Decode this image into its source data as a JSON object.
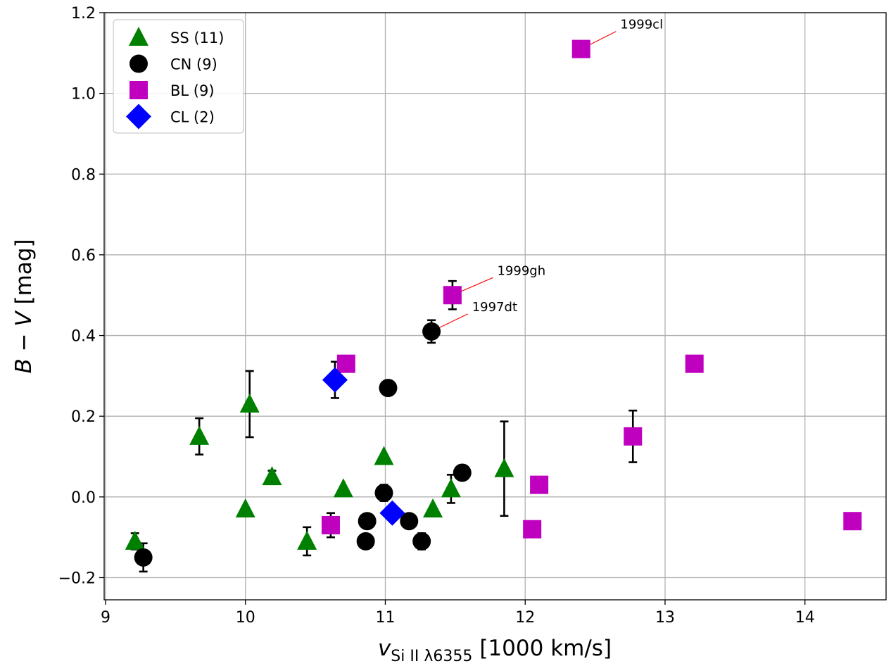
{
  "chart_data": {
    "type": "scatter",
    "xlabel": {
      "main": "v",
      "sub": "Si II λ6355",
      "unit": "[1000 km/s]"
    },
    "ylabel": {
      "b": "B",
      "minus": " − ",
      "v": "V",
      "unit": " [mag]"
    },
    "xlim": [
      8.99,
      14.58
    ],
    "ylim": [
      -0.255,
      1.2
    ],
    "xticks": [
      9,
      10,
      11,
      12,
      13,
      14
    ],
    "xtick_labels": [
      "9",
      "10",
      "11",
      "12",
      "13",
      "14"
    ],
    "yticks": [
      -0.2,
      0.0,
      0.2,
      0.4,
      0.6,
      0.8,
      1.0,
      1.2
    ],
    "ytick_labels": [
      "−0.2",
      "0.0",
      "0.2",
      "0.4",
      "0.6",
      "0.8",
      "1.0",
      "1.2"
    ],
    "grid": true,
    "legend_position": "top-left",
    "series": [
      {
        "name": "SS (11)",
        "marker": "triangle",
        "color": "#008000",
        "points": [
          {
            "x": 9.21,
            "y": -0.11,
            "err": 0.02
          },
          {
            "x": 9.67,
            "y": 0.15,
            "err": 0.045
          },
          {
            "x": 10.0,
            "y": -0.03,
            "err": 0.0
          },
          {
            "x": 10.03,
            "y": 0.23,
            "err": 0.082
          },
          {
            "x": 10.19,
            "y": 0.05,
            "err": 0.015
          },
          {
            "x": 10.44,
            "y": -0.11,
            "err": 0.035
          },
          {
            "x": 10.7,
            "y": 0.02,
            "err": 0.0
          },
          {
            "x": 10.99,
            "y": 0.1,
            "err": 0.0
          },
          {
            "x": 11.34,
            "y": -0.03,
            "err": 0.0
          },
          {
            "x": 11.47,
            "y": 0.02,
            "err": 0.035
          },
          {
            "x": 11.85,
            "y": 0.07,
            "err": 0.117
          }
        ]
      },
      {
        "name": "CN (9)",
        "marker": "circle",
        "color": "#000000",
        "points": [
          {
            "x": 9.27,
            "y": -0.15,
            "err": 0.035
          },
          {
            "x": 10.86,
            "y": -0.11,
            "err": 0.0
          },
          {
            "x": 10.87,
            "y": -0.06,
            "err": 0.0
          },
          {
            "x": 10.99,
            "y": 0.01,
            "err": 0.02
          },
          {
            "x": 11.02,
            "y": 0.27,
            "err": 0.0
          },
          {
            "x": 11.17,
            "y": -0.06,
            "err": 0.0
          },
          {
            "x": 11.26,
            "y": -0.11,
            "err": 0.02
          },
          {
            "x": 11.33,
            "y": 0.41,
            "err": 0.028
          },
          {
            "x": 11.55,
            "y": 0.06,
            "err": 0.0
          }
        ]
      },
      {
        "name": "BL (9)",
        "marker": "square",
        "color": "#bf00bf",
        "points": [
          {
            "x": 10.61,
            "y": -0.07,
            "err": 0.03
          },
          {
            "x": 10.72,
            "y": 0.33,
            "err": 0.0
          },
          {
            "x": 11.48,
            "y": 0.5,
            "err": 0.035
          },
          {
            "x": 12.05,
            "y": -0.08,
            "err": 0.0
          },
          {
            "x": 12.1,
            "y": 0.03,
            "err": 0.0
          },
          {
            "x": 12.4,
            "y": 1.11,
            "err": 0.0
          },
          {
            "x": 12.77,
            "y": 0.15,
            "err": 0.064
          },
          {
            "x": 13.21,
            "y": 0.33,
            "err": 0.0
          },
          {
            "x": 14.34,
            "y": -0.06,
            "err": 0.0
          }
        ]
      },
      {
        "name": "CL (2)",
        "marker": "diamond",
        "color": "#0000ff",
        "points": [
          {
            "x": 10.64,
            "y": 0.29,
            "err": 0.045
          },
          {
            "x": 11.05,
            "y": -0.04,
            "err": 0.0
          }
        ]
      }
    ],
    "annotations": [
      {
        "text": "1999cl",
        "x": 12.4,
        "y": 1.11,
        "tx": 12.68,
        "ty": 1.15
      },
      {
        "text": "1999gh",
        "x": 11.48,
        "y": 0.5,
        "tx": 11.8,
        "ty": 0.54
      },
      {
        "text": "1997dt",
        "x": 11.33,
        "y": 0.41,
        "tx": 11.62,
        "ty": 0.45
      }
    ]
  }
}
